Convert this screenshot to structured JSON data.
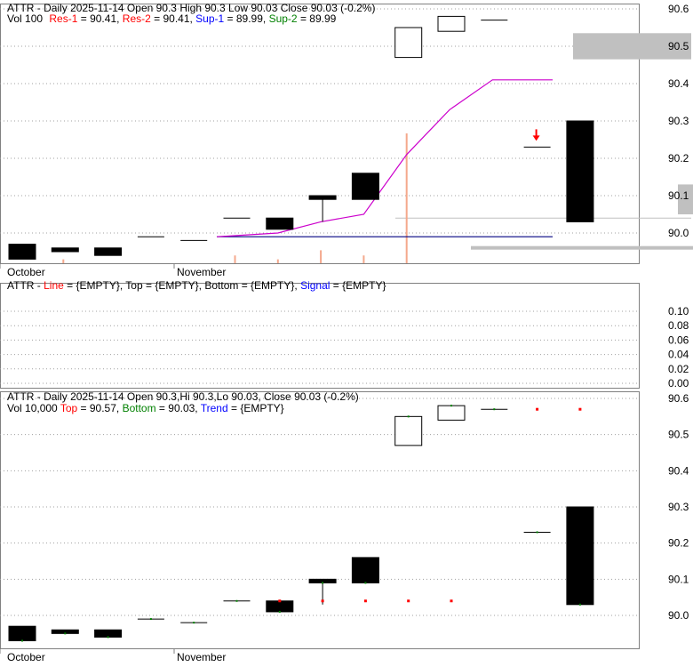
{
  "colors": {
    "grid": "#a0a0a0",
    "border": "#808080",
    "candle": "#000000",
    "res": "#ff0000",
    "sup": "#0000ff",
    "sup2": "#008000",
    "line_magenta": "#cc00cc",
    "line_blue": "#000080",
    "volume": "#f4a88c",
    "top_marker": "#ff0000",
    "bottom_marker": "#008000",
    "band": "#c0c0c0"
  },
  "panel1": {
    "header1_plain": "ATTR - Daily 2025-11-14 Open 90.3  High 90.3  Low 90.03  Close 90.03 (-0.2%)",
    "header2_vol": "Vol 100",
    "header2_res1": "Res-1",
    "header2_res1_val": " = 90.41, ",
    "header2_res2": "Res-2",
    "header2_res2_val": " = 90.41, ",
    "header2_sup1": "Sup-1",
    "header2_sup1_val": " = 89.99, ",
    "header2_sup2": "Sup-2",
    "header2_sup2_val": " = 89.99",
    "x_labels": [
      "October",
      "November"
    ],
    "y_ticks": [
      "90.6",
      "90.5",
      "90.4",
      "90.3",
      "90.2",
      "90.1",
      "90.0"
    ]
  },
  "panel2": {
    "header_prefix": "ATTR - ",
    "line_label": "Line",
    "line_val": " = {EMPTY}, ",
    "top_label": "Top",
    "top_val": " = {EMPTY}, ",
    "bottom_label": "Bottom",
    "bottom_val": " = {EMPTY}, ",
    "signal_label": "Signal",
    "signal_val": " = {EMPTY}",
    "y_ticks": [
      "0.10",
      "0.08",
      "0.06",
      "0.04",
      "0.02",
      "0.00"
    ]
  },
  "panel3": {
    "header1_plain": "ATTR - Daily 2025-11-14 Open 90.3,Hi 90.3,Lo 90.03, Close 90.03 (-0.2%)",
    "header2_vol": "Vol 10,000 ",
    "top_label": "Top",
    "top_val": " = 90.57, ",
    "bottom_label": "Bottom",
    "bottom_val": " = 90.03, ",
    "trend_label": "Trend",
    "trend_val": " = {EMPTY}",
    "x_labels": [
      "October",
      "November"
    ],
    "y_ticks": [
      "90.6",
      "90.5",
      "90.4",
      "90.3",
      "90.2",
      "90.1",
      "90.0"
    ]
  },
  "chart_data": {
    "type": "candlestick",
    "ylim": [
      89.93,
      90.62
    ],
    "candles": [
      {
        "open": 89.97,
        "high": 89.97,
        "low": 89.93,
        "close": 89.93
      },
      {
        "open": 89.96,
        "high": 89.96,
        "low": 89.95,
        "close": 89.95
      },
      {
        "open": 89.96,
        "high": 89.96,
        "low": 89.94,
        "close": 89.94
      },
      {
        "open": 89.99,
        "high": 89.99,
        "low": 89.99,
        "close": 89.99
      },
      {
        "open": 89.98,
        "high": 89.98,
        "low": 89.98,
        "close": 89.98
      },
      {
        "open": 90.04,
        "high": 90.04,
        "low": 90.04,
        "close": 90.04
      },
      {
        "open": 90.04,
        "high": 90.04,
        "low": 90.01,
        "close": 90.01
      },
      {
        "open": 90.1,
        "high": 90.1,
        "low": 90.03,
        "close": 90.09
      },
      {
        "open": 90.16,
        "high": 90.16,
        "low": 90.09,
        "close": 90.09
      },
      {
        "open": 90.47,
        "high": 90.55,
        "low": 90.47,
        "close": 90.55
      },
      {
        "open": 90.54,
        "high": 90.58,
        "low": 90.54,
        "close": 90.58
      },
      {
        "open": 90.57,
        "high": 90.57,
        "low": 90.57,
        "close": 90.57
      },
      {
        "open": 90.23,
        "high": 90.23,
        "low": 90.23,
        "close": 90.23
      },
      {
        "open": 90.3,
        "high": 90.3,
        "low": 90.03,
        "close": 90.03
      }
    ],
    "volume": [
      0,
      3,
      0,
      0,
      0,
      6,
      3,
      10,
      6,
      100,
      0,
      0,
      0,
      0
    ],
    "res_line": [
      null,
      null,
      null,
      null,
      null,
      89.99,
      90.0,
      90.03,
      90.05,
      90.21,
      90.33,
      90.41,
      90.41,
      90.41
    ],
    "sup_line": [
      null,
      null,
      null,
      null,
      null,
      89.99,
      89.99,
      89.99,
      89.99,
      89.99,
      89.99,
      89.99,
      89.99,
      89.99
    ],
    "top_markers": [
      null,
      null,
      null,
      null,
      null,
      null,
      90.04,
      90.04,
      90.04,
      90.04,
      90.04,
      null,
      90.57,
      90.57
    ],
    "arrow_at": 12
  }
}
